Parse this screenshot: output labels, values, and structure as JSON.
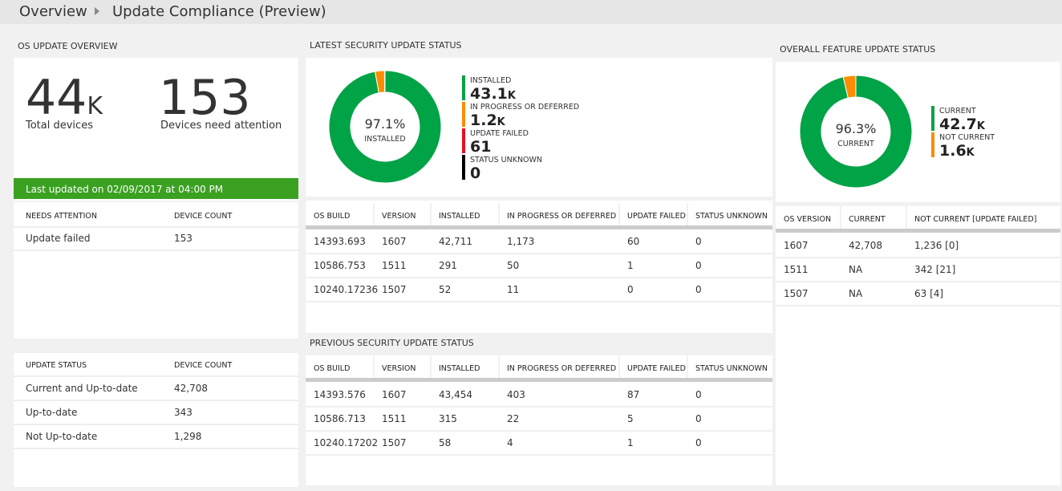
{
  "header": {
    "breadcrumb": [
      "Overview",
      "Update Compliance (Preview)"
    ]
  },
  "os_update_overview": {
    "title": "OS UPDATE OVERVIEW",
    "stats": [
      {
        "value": "44",
        "unit": "K",
        "label": "Total devices"
      },
      {
        "value": "153",
        "label": "Devices need attention"
      }
    ],
    "last_updated": "Last updated on 02/09/2017 at 04:00 PM",
    "needs_attention_table": {
      "columns": [
        "NEEDS ATTENTION",
        "DEVICE COUNT"
      ],
      "rows": [
        [
          "Update failed",
          "153"
        ]
      ]
    },
    "update_status_table": {
      "columns": [
        "UPDATE STATUS",
        "DEVICE COUNT"
      ],
      "rows": [
        [
          "Current and Up-to-date",
          "42,708"
        ],
        [
          "Up-to-date",
          "343"
        ],
        [
          "Not Up-to-date",
          "1,298"
        ]
      ]
    }
  },
  "latest_security_update_status": {
    "title": "LATEST SECURITY UPDATE STATUS",
    "donut": {
      "center_value": "97.1%",
      "center_label": "INSTALLED",
      "items": [
        {
          "label": "INSTALLED",
          "value": 43100,
          "number_label": "43.1",
          "unit": "K",
          "color": "#00a346"
        },
        {
          "label": "IN PROGRESS OR DEFERRED",
          "value": 1200,
          "number_label": "1.2",
          "unit": "K",
          "color": "#ff8c00"
        },
        {
          "label": "UPDATE FAILED",
          "value": 61,
          "number_label": "61",
          "color": "#e81123"
        },
        {
          "label": "STATUS UNKNOWN",
          "value": 0,
          "number_label": "0",
          "color": "#000000"
        }
      ]
    },
    "table": {
      "columns": [
        "OS BUILD",
        "VERSION",
        "INSTALLED",
        "IN PROGRESS OR DEFERRED",
        "UPDATE FAILED",
        "STATUS UNKNOWN"
      ],
      "rows": [
        [
          "14393.693",
          "1607",
          "42,711",
          "1,173",
          "60",
          "0"
        ],
        [
          "10586.753",
          "1511",
          "291",
          "50",
          "1",
          "0"
        ],
        [
          "10240.17236",
          "1507",
          "52",
          "11",
          "0",
          "0"
        ]
      ]
    }
  },
  "previous_security_update_status": {
    "title": "PREVIOUS SECURITY UPDATE STATUS",
    "table": {
      "columns": [
        "OS BUILD",
        "VERSION",
        "INSTALLED",
        "IN PROGRESS OR DEFERRED",
        "UPDATE FAILED",
        "STATUS UNKNOWN"
      ],
      "rows": [
        [
          "14393.576",
          "1607",
          "43,454",
          "403",
          "87",
          "0"
        ],
        [
          "10586.713",
          "1511",
          "315",
          "22",
          "5",
          "0"
        ],
        [
          "10240.17202",
          "1507",
          "58",
          "4",
          "1",
          "0"
        ]
      ]
    }
  },
  "overall_feature_update_status": {
    "title": "OVERALL FEATURE UPDATE STATUS",
    "donut": {
      "center_value": "96.3%",
      "center_label": "CURRENT",
      "items": [
        {
          "label": "CURRENT",
          "value": 42700,
          "number_label": "42.7",
          "unit": "K",
          "color": "#00a346"
        },
        {
          "label": "NOT CURRENT",
          "value": 1600,
          "number_label": "1.6",
          "unit": "K",
          "color": "#ff8c00"
        }
      ]
    },
    "table": {
      "columns": [
        "OS VERSION",
        "CURRENT",
        "NOT CURRENT [UPDATE FAILED]"
      ],
      "rows": [
        [
          "1607",
          "42,708",
          "1,236 [0]"
        ],
        [
          "1511",
          "NA",
          "342 [21]"
        ],
        [
          "1507",
          "NA",
          "63 [4]"
        ]
      ]
    }
  }
}
